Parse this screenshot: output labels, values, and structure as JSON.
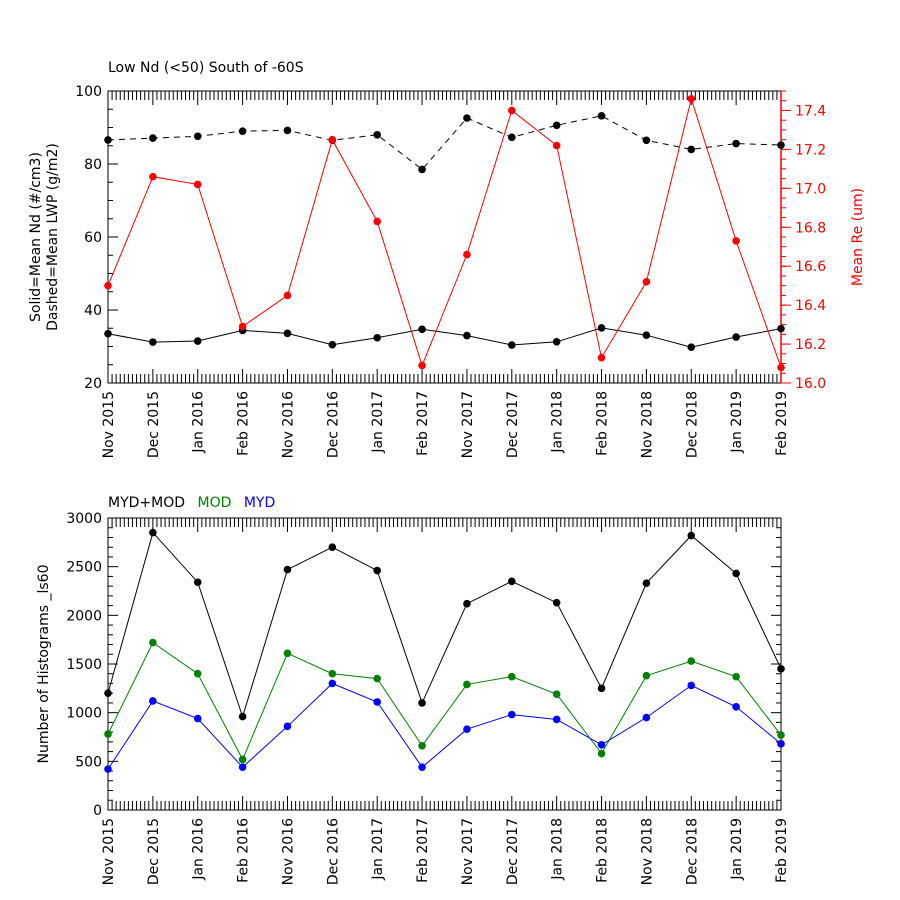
{
  "chart_data": [
    {
      "type": "line",
      "title": "Low Nd (<50) South of -60S",
      "categories": [
        "Nov 2015",
        "Dec 2015",
        "Jan 2016",
        "Feb 2016",
        "Nov 2016",
        "Dec 2016",
        "Jan 2017",
        "Feb 2017",
        "Nov 2017",
        "Dec 2017",
        "Jan 2018",
        "Feb 2018",
        "Nov 2018",
        "Dec 2018",
        "Jan 2019",
        "Feb 2019"
      ],
      "ylabel_line1": "Solid=Mean Nd (#/cm3)",
      "ylabel_line2": "Dashed=Mean LWP (g/m2)",
      "ylim": [
        20,
        100
      ],
      "y_ticks": [
        "20",
        "40",
        "60",
        "80",
        "100"
      ],
      "y2label": "Mean Re (um)",
      "y2lim": [
        16.0,
        17.5
      ],
      "y2_ticks": [
        "16.0",
        "16.2",
        "16.4",
        "16.6",
        "16.8",
        "17.0",
        "17.2",
        "17.4"
      ],
      "series": [
        {
          "name": "Mean Nd",
          "axis": "left",
          "style": "solid",
          "color": "#000000",
          "values": [
            33.5,
            31.2,
            31.5,
            34.4,
            33.6,
            30.5,
            32.4,
            34.7,
            33.0,
            30.4,
            31.3,
            35.1,
            33.1,
            29.8,
            32.6,
            34.9
          ]
        },
        {
          "name": "Mean LWP",
          "axis": "left",
          "style": "dashed",
          "color": "#000000",
          "values": [
            86.6,
            87.1,
            87.6,
            89.0,
            89.2,
            86.5,
            88.0,
            78.5,
            92.6,
            87.3,
            90.6,
            93.2,
            86.5,
            84.0,
            85.6,
            85.2
          ]
        },
        {
          "name": "Mean Re",
          "axis": "right",
          "style": "solid",
          "color": "#ff0000",
          "values": [
            16.5,
            17.06,
            17.02,
            16.29,
            16.45,
            17.25,
            16.83,
            16.09,
            16.66,
            17.4,
            17.22,
            16.13,
            16.52,
            17.46,
            16.73,
            16.08
          ]
        }
      ]
    },
    {
      "type": "line",
      "legend": [
        {
          "label": "MYD+MOD",
          "color": "#000000"
        },
        {
          "label": "MOD",
          "color": "#008000"
        },
        {
          "label": "MYD",
          "color": "#0000ff"
        }
      ],
      "categories": [
        "Nov 2015",
        "Dec 2015",
        "Jan 2016",
        "Feb 2016",
        "Nov 2016",
        "Dec 2016",
        "Jan 2017",
        "Feb 2017",
        "Nov 2017",
        "Dec 2017",
        "Jan 2018",
        "Feb 2018",
        "Nov 2018",
        "Dec 2018",
        "Jan 2019",
        "Feb 2019"
      ],
      "ylabel": "Number of Histograms _ls60",
      "ylim": [
        0,
        3000
      ],
      "y_ticks": [
        "0",
        "500",
        "1000",
        "1500",
        "2000",
        "2500",
        "3000"
      ],
      "series": [
        {
          "name": "MYD+MOD",
          "color": "#000000",
          "values": [
            1200,
            2850,
            2340,
            960,
            2470,
            2700,
            2460,
            1100,
            2120,
            2350,
            2130,
            1250,
            2330,
            2820,
            2430,
            1450
          ]
        },
        {
          "name": "MOD",
          "color": "#008000",
          "values": [
            780,
            1720,
            1400,
            520,
            1610,
            1400,
            1350,
            660,
            1290,
            1370,
            1190,
            580,
            1380,
            1530,
            1370,
            770
          ]
        },
        {
          "name": "MYD",
          "color": "#0000ff",
          "values": [
            420,
            1120,
            940,
            440,
            860,
            1300,
            1110,
            440,
            830,
            980,
            930,
            670,
            950,
            1280,
            1060,
            680
          ]
        }
      ]
    }
  ]
}
